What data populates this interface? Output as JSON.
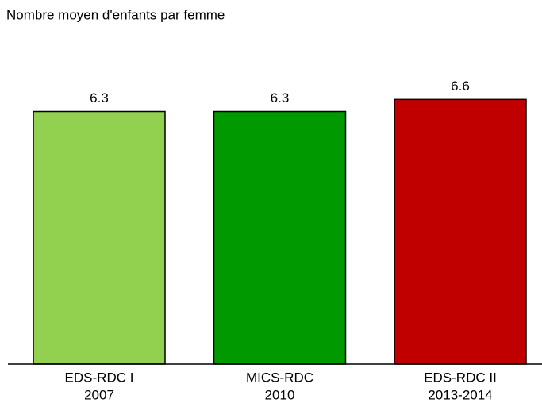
{
  "chart_data": {
    "type": "bar",
    "title": "Nombre moyen d'enfants par femme",
    "categories": [
      [
        "EDS-RDC I",
        "2007"
      ],
      [
        "MICS-RDC",
        "2010"
      ],
      [
        "EDS-RDC II",
        "2013-2014"
      ]
    ],
    "values": [
      6.3,
      6.3,
      6.6
    ],
    "colors": [
      "#92d050",
      "#009900",
      "#c00000"
    ],
    "ylim": [
      0,
      9
    ]
  }
}
